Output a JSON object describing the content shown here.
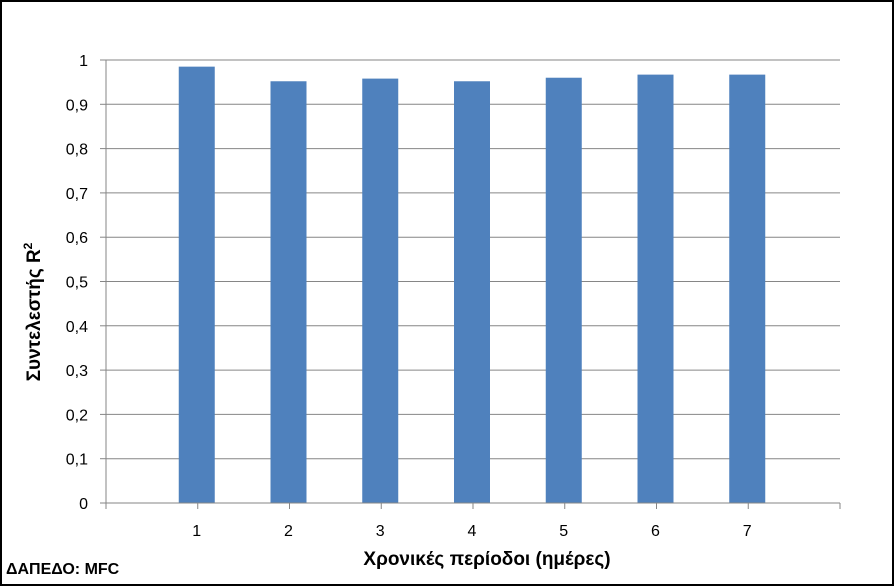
{
  "chart_data": {
    "type": "bar",
    "categories": [
      "1",
      "2",
      "3",
      "4",
      "5",
      "6",
      "7"
    ],
    "series": [
      {
        "values": [
          0.985,
          0.952,
          0.958,
          0.952,
          0.96,
          0.967,
          0.967
        ],
        "color": "#4F81BD"
      }
    ],
    "xlabel": "Χρονικές περίοδοι (ημέρες)",
    "ylabel_main": "Συντελεστής  R",
    "ylabel_sup": "2",
    "ylim": [
      0,
      1
    ],
    "yticks": [
      "0",
      "0,1",
      "0,2",
      "0,3",
      "0,4",
      "0,5",
      "0,6",
      "0,7",
      "0,8",
      "0,9",
      "1"
    ],
    "grid": true,
    "legend": "none",
    "annotation": "ΔΑΠΕΔΟ: MFC"
  }
}
